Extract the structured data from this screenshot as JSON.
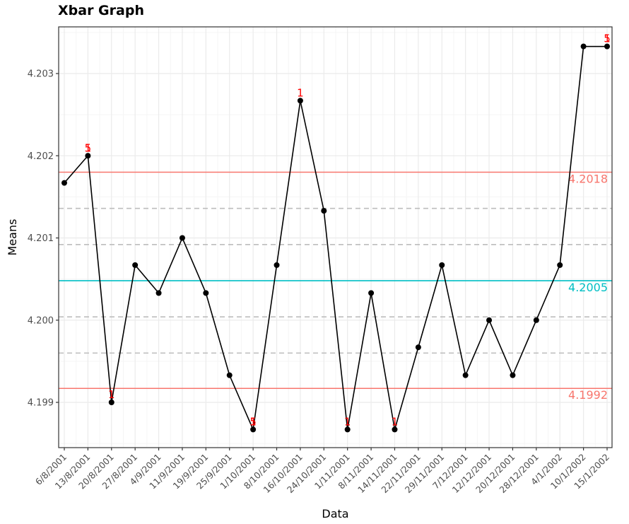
{
  "chart_data": {
    "type": "line",
    "title": "Xbar Graph",
    "xlabel": "Data",
    "ylabel": "Means",
    "ylim": [
      4.1984,
      4.2036
    ],
    "y_ticks": [
      "4.199",
      "4.200",
      "4.201",
      "4.202",
      "4.203"
    ],
    "categories": [
      "6/8/2001",
      "13/8/2001",
      "20/8/2001",
      "27/8/2001",
      "4/9/2001",
      "11/9/2001",
      "19/9/2001",
      "25/9/2001",
      "1/10/2001",
      "8/10/2001",
      "16/10/2001",
      "24/10/2001",
      "1/11/2001",
      "8/11/2001",
      "14/11/2001",
      "22/11/2001",
      "29/11/2001",
      "7/12/2001",
      "12/12/2001",
      "20/12/2001",
      "28/12/2001",
      "4/1/2002",
      "10/1/2002",
      "15/1/2002"
    ],
    "values": [
      4.20167,
      4.202,
      4.199,
      4.20067,
      4.20033,
      4.201,
      4.20033,
      4.19933,
      4.19867,
      4.20067,
      4.20267,
      4.20133,
      4.19867,
      4.20033,
      4.19867,
      4.19967,
      4.20067,
      4.19933,
      4.2,
      4.19933,
      4.2,
      4.20067,
      4.20333,
      4.20333
    ],
    "center_line": {
      "value": 4.20048,
      "label": "4.2005",
      "color": "#00bfc4"
    },
    "control_limits": [
      {
        "value": 4.2018,
        "label": "4.2018",
        "color": "#f8766d"
      },
      {
        "value": 4.19917,
        "label": "4.1992",
        "color": "#f8766d"
      }
    ],
    "zone_lines": [
      4.20136,
      4.20092,
      4.20004,
      4.1996
    ],
    "violations": [
      {
        "index": 1,
        "labels": [
          "1",
          "5"
        ]
      },
      {
        "index": 2,
        "labels": [
          "1"
        ]
      },
      {
        "index": 8,
        "labels": [
          "1",
          "5"
        ]
      },
      {
        "index": 10,
        "labels": [
          "1"
        ]
      },
      {
        "index": 12,
        "labels": [
          "1"
        ]
      },
      {
        "index": 14,
        "labels": [
          "1"
        ]
      },
      {
        "index": 23,
        "labels": [
          "1",
          "5"
        ]
      }
    ],
    "colors": {
      "line": "#000000",
      "point": "#000000",
      "flag": "#ff0000",
      "zone": "#bdbdbd",
      "grid_major": "#ebebeb",
      "grid_minor": "#f5f5f5",
      "panel_border": "#333333"
    },
    "grid": true,
    "legend": "none"
  }
}
